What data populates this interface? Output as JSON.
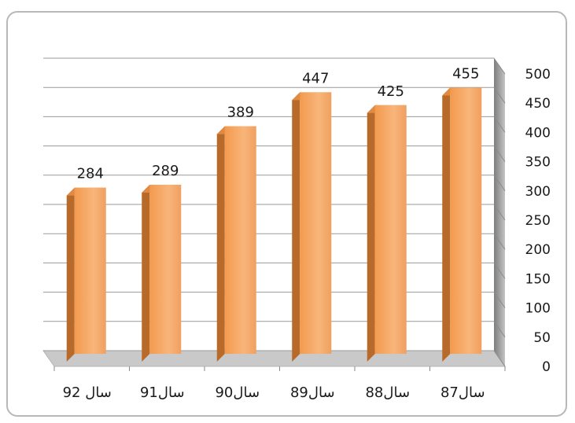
{
  "colors": {
    "bar_front": "#f5a05a",
    "bar_side": "#b86a2a",
    "bar_top": "#e08a44",
    "back_wall": "#ffffff",
    "side_wall": "#a9a9a9",
    "floor": "#c9c9c9",
    "gridline": "#9a9a9a",
    "text": "#1a1a1a"
  },
  "chart_data": {
    "type": "bar",
    "categories": [
      "سال 92",
      "سال91",
      "سال90",
      "سال89",
      "سال88",
      "سال87"
    ],
    "values": [
      284,
      289,
      389,
      447,
      425,
      455
    ],
    "data_labels": [
      "284",
      "289",
      "389",
      "447",
      "425",
      "455"
    ],
    "ylim": [
      0,
      500
    ],
    "yticks": [
      0,
      50,
      100,
      150,
      200,
      250,
      300,
      350,
      400,
      450,
      500
    ],
    "ytick_labels": [
      "0",
      "50",
      "100",
      "150",
      "200",
      "250",
      "300",
      "350",
      "400",
      "450",
      "500"
    ],
    "y_axis_side": "right",
    "grid": true,
    "bar_style": "3d",
    "legend": "none"
  }
}
